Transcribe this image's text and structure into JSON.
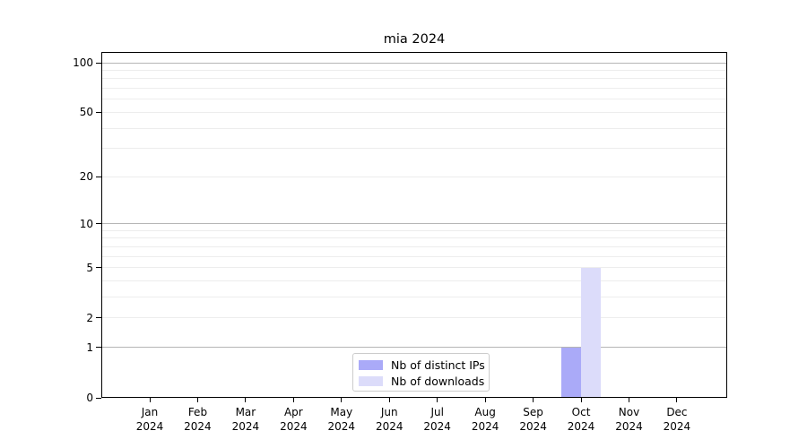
{
  "page": {
    "background_color": "#ffffff"
  },
  "chart_data": {
    "type": "bar",
    "title": "mia 2024",
    "categories": [
      "Jan",
      "Feb",
      "Mar",
      "Apr",
      "May",
      "Jun",
      "Jul",
      "Aug",
      "Sep",
      "Oct",
      "Nov",
      "Dec"
    ],
    "category_year": "2024",
    "series": [
      {
        "name": "Nb of distinct IPs",
        "color": "#aaaaf8",
        "values": [
          0,
          0,
          0,
          0,
          0,
          0,
          0,
          0,
          0,
          1,
          0,
          0
        ]
      },
      {
        "name": "Nb of downloads",
        "color": "#dcdcfa",
        "values": [
          0,
          0,
          0,
          0,
          0,
          0,
          0,
          0,
          0,
          5,
          0,
          0
        ]
      }
    ],
    "y_axis": {
      "scale": "log10(value+1)",
      "tick_values": [
        0,
        1,
        2,
        5,
        10,
        20,
        50,
        100
      ],
      "major_gridlines": [
        1,
        10,
        100
      ],
      "minor_gridlines": [
        2,
        3,
        4,
        5,
        6,
        7,
        8,
        9,
        20,
        30,
        40,
        50,
        60,
        70,
        80,
        90
      ],
      "ylim": [
        0,
        116
      ],
      "grid": "on"
    },
    "x_axis": {
      "tick_labels_line1": [
        "Jan",
        "Feb",
        "Mar",
        "Apr",
        "May",
        "Jun",
        "Jul",
        "Aug",
        "Sep",
        "Oct",
        "Nov",
        "Dec"
      ],
      "tick_labels_line2": [
        "2024",
        "2024",
        "2024",
        "2024",
        "2024",
        "2024",
        "2024",
        "2024",
        "2024",
        "2024",
        "2024",
        "2024"
      ]
    },
    "legend": {
      "position": "bottom-center",
      "items": [
        "Nb of distinct IPs",
        "Nb of downloads"
      ]
    },
    "colors": {
      "major_grid": "#b5b5b5",
      "minor_grid": "#ededed",
      "spine": "#000000",
      "text": "#000000"
    }
  }
}
